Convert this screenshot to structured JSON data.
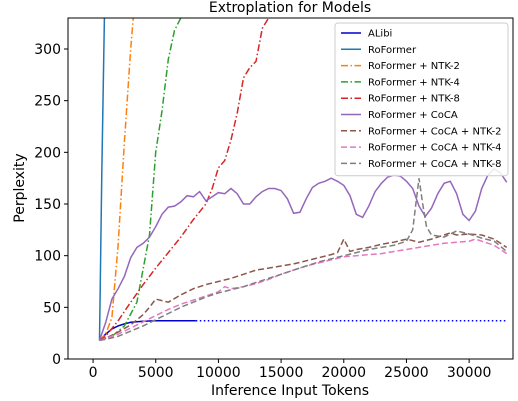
{
  "chart_data": {
    "type": "line",
    "title": "Extroplation for Models",
    "xlabel": "Inference Input Tokens",
    "ylabel": "Perplexity",
    "xlim": [
      -2000,
      33500
    ],
    "ylim": [
      0,
      330
    ],
    "xticks": [
      0,
      5000,
      10000,
      15000,
      20000,
      25000,
      30000
    ],
    "yticks": [
      0,
      50,
      100,
      150,
      200,
      250,
      300
    ],
    "grid": false,
    "legend_position": "top-right",
    "series": [
      {
        "name": "ALibi",
        "color": "#0000cc",
        "dash": "solid",
        "x": [
          512,
          1000,
          1500,
          2000,
          2500,
          3000,
          3500,
          4000,
          5000,
          6000,
          7000,
          8192
        ],
        "y": [
          18,
          24,
          29,
          32,
          34,
          35.5,
          36,
          36.5,
          37,
          37,
          37,
          37
        ]
      },
      {
        "name": "",
        "color": "#0000ff",
        "dash": "dotted",
        "x": [
          8192,
          33000
        ],
        "y": [
          37,
          37
        ]
      },
      {
        "name": "RoFormer",
        "color": "#1f77b4",
        "dash": "solid",
        "x": [
          512,
          700,
          900
        ],
        "y": [
          18,
          180,
          330
        ]
      },
      {
        "name": "RoFormer + NTK-2",
        "color": "#ff7f0e",
        "dash": "dashdot",
        "x": [
          512,
          1000,
          1500,
          2000,
          2500,
          3000,
          3200
        ],
        "y": [
          18,
          24,
          40,
          110,
          210,
          300,
          330
        ]
      },
      {
        "name": "RoFormer + NTK-4",
        "color": "#2ca02c",
        "dash": "dashdot",
        "x": [
          512,
          1500,
          2500,
          3500,
          4500,
          5000,
          5500,
          6000,
          6500,
          7000
        ],
        "y": [
          18,
          22,
          32,
          55,
          120,
          200,
          240,
          290,
          318,
          330
        ]
      },
      {
        "name": "RoFormer + NTK-8",
        "color": "#d62728",
        "dash": "dashdot",
        "x": [
          512,
          1000,
          2000,
          3000,
          4000,
          5000,
          6000,
          7000,
          8000,
          9000,
          9500,
          10000,
          10500,
          11000,
          11500,
          12000,
          12500,
          13000,
          13500,
          14000
        ],
        "y": [
          18,
          22,
          37,
          55,
          72,
          88,
          103,
          118,
          135,
          150,
          165,
          185,
          192,
          212,
          238,
          272,
          282,
          288,
          320,
          330
        ]
      },
      {
        "name": "RoFormer + CoCA",
        "color": "#9467bd",
        "dash": "solid",
        "x": [
          512,
          1000,
          1500,
          2000,
          2500,
          3000,
          3500,
          4000,
          4500,
          5000,
          5500,
          6000,
          6500,
          7000,
          7500,
          8000,
          8500,
          9000,
          9500,
          10000,
          10500,
          11000,
          11500,
          12000,
          12500,
          13000,
          13500,
          14000,
          14500,
          15000,
          15500,
          16000,
          16500,
          17000,
          17500,
          18000,
          18500,
          19000,
          19500,
          20000,
          20500,
          21000,
          21500,
          22000,
          22500,
          23000,
          23500,
          24000,
          24500,
          25000,
          25500,
          26000,
          26500,
          27000,
          27500,
          28000,
          28500,
          29000,
          29500,
          30000,
          30500,
          31000,
          31500,
          32000,
          32500,
          33000
        ],
        "y": [
          18,
          35,
          58,
          68,
          80,
          98,
          108,
          112,
          118,
          128,
          140,
          147,
          148,
          152,
          158,
          157,
          162,
          153,
          157,
          161,
          160,
          165,
          160,
          150,
          150,
          157,
          162,
          165,
          165,
          163,
          155,
          141,
          142,
          155,
          166,
          170,
          172,
          175,
          172,
          168,
          158,
          140,
          137,
          148,
          162,
          170,
          176,
          178,
          177,
          172,
          165,
          148,
          138,
          146,
          160,
          170,
          172,
          160,
          140,
          134,
          143,
          165,
          178,
          184,
          180,
          171
        ]
      },
      {
        "name": "RoFormer + CoCA + NTK-2",
        "color": "#8c564b",
        "dash": "dashed",
        "x": [
          512,
          1000,
          2000,
          3000,
          4000,
          4500,
          5000,
          6000,
          7000,
          8000,
          9000,
          10000,
          11000,
          12000,
          13000,
          14000,
          15000,
          16000,
          17000,
          18000,
          19000,
          19500,
          20000,
          20500,
          21000,
          22000,
          23000,
          24000,
          25000,
          26000,
          27000,
          28000,
          28500,
          29000,
          30000,
          31000,
          32000,
          32500,
          33000
        ],
        "y": [
          18,
          20,
          26,
          33,
          43,
          50,
          58,
          55,
          62,
          68,
          72,
          75,
          78,
          82,
          86,
          88,
          90,
          92,
          95,
          98,
          101,
          103,
          116,
          104,
          106,
          108,
          111,
          113,
          116,
          113,
          116,
          120,
          122,
          120,
          121,
          120,
          116,
          112,
          108
        ]
      },
      {
        "name": "RoFormer + CoCA + NTK-4",
        "color": "#e377c2",
        "dash": "dashed",
        "x": [
          512,
          1000,
          2000,
          3000,
          4000,
          5000,
          6000,
          7000,
          8000,
          9000,
          10000,
          10500,
          11000,
          12000,
          13000,
          14000,
          15000,
          16000,
          17000,
          18000,
          19000,
          20000,
          21000,
          22000,
          23000,
          24000,
          25000,
          26000,
          27000,
          28000,
          29000,
          30000,
          30500,
          31000,
          32000,
          33000
        ],
        "y": [
          18,
          20,
          24,
          30,
          36,
          42,
          48,
          53,
          57,
          61,
          65,
          70,
          68,
          70,
          73,
          77,
          82,
          86,
          90,
          93,
          96,
          99,
          100,
          101,
          102,
          104,
          106,
          108,
          110,
          112,
          113,
          114,
          116,
          114,
          110,
          102
        ]
      },
      {
        "name": "RoFormer + CoCA + NTK-8",
        "color": "#7f7f7f",
        "dash": "dashed",
        "x": [
          512,
          1000,
          2000,
          3000,
          4000,
          5000,
          6000,
          7000,
          8000,
          9000,
          10000,
          11000,
          12000,
          13000,
          14000,
          15000,
          16000,
          17000,
          18000,
          19000,
          20000,
          21000,
          22000,
          23000,
          24000,
          25000,
          25500,
          26000,
          26300,
          26600,
          27000,
          28000,
          29000,
          30000,
          31000,
          32000,
          33000
        ],
        "y": [
          18,
          19,
          22,
          27,
          32,
          38,
          44,
          50,
          55,
          60,
          64,
          67,
          70,
          74,
          78,
          82,
          86,
          90,
          94,
          97,
          100,
          103,
          106,
          108,
          110,
          114,
          125,
          175,
          150,
          128,
          120,
          118,
          124,
          121,
          117,
          114,
          104
        ]
      }
    ]
  }
}
